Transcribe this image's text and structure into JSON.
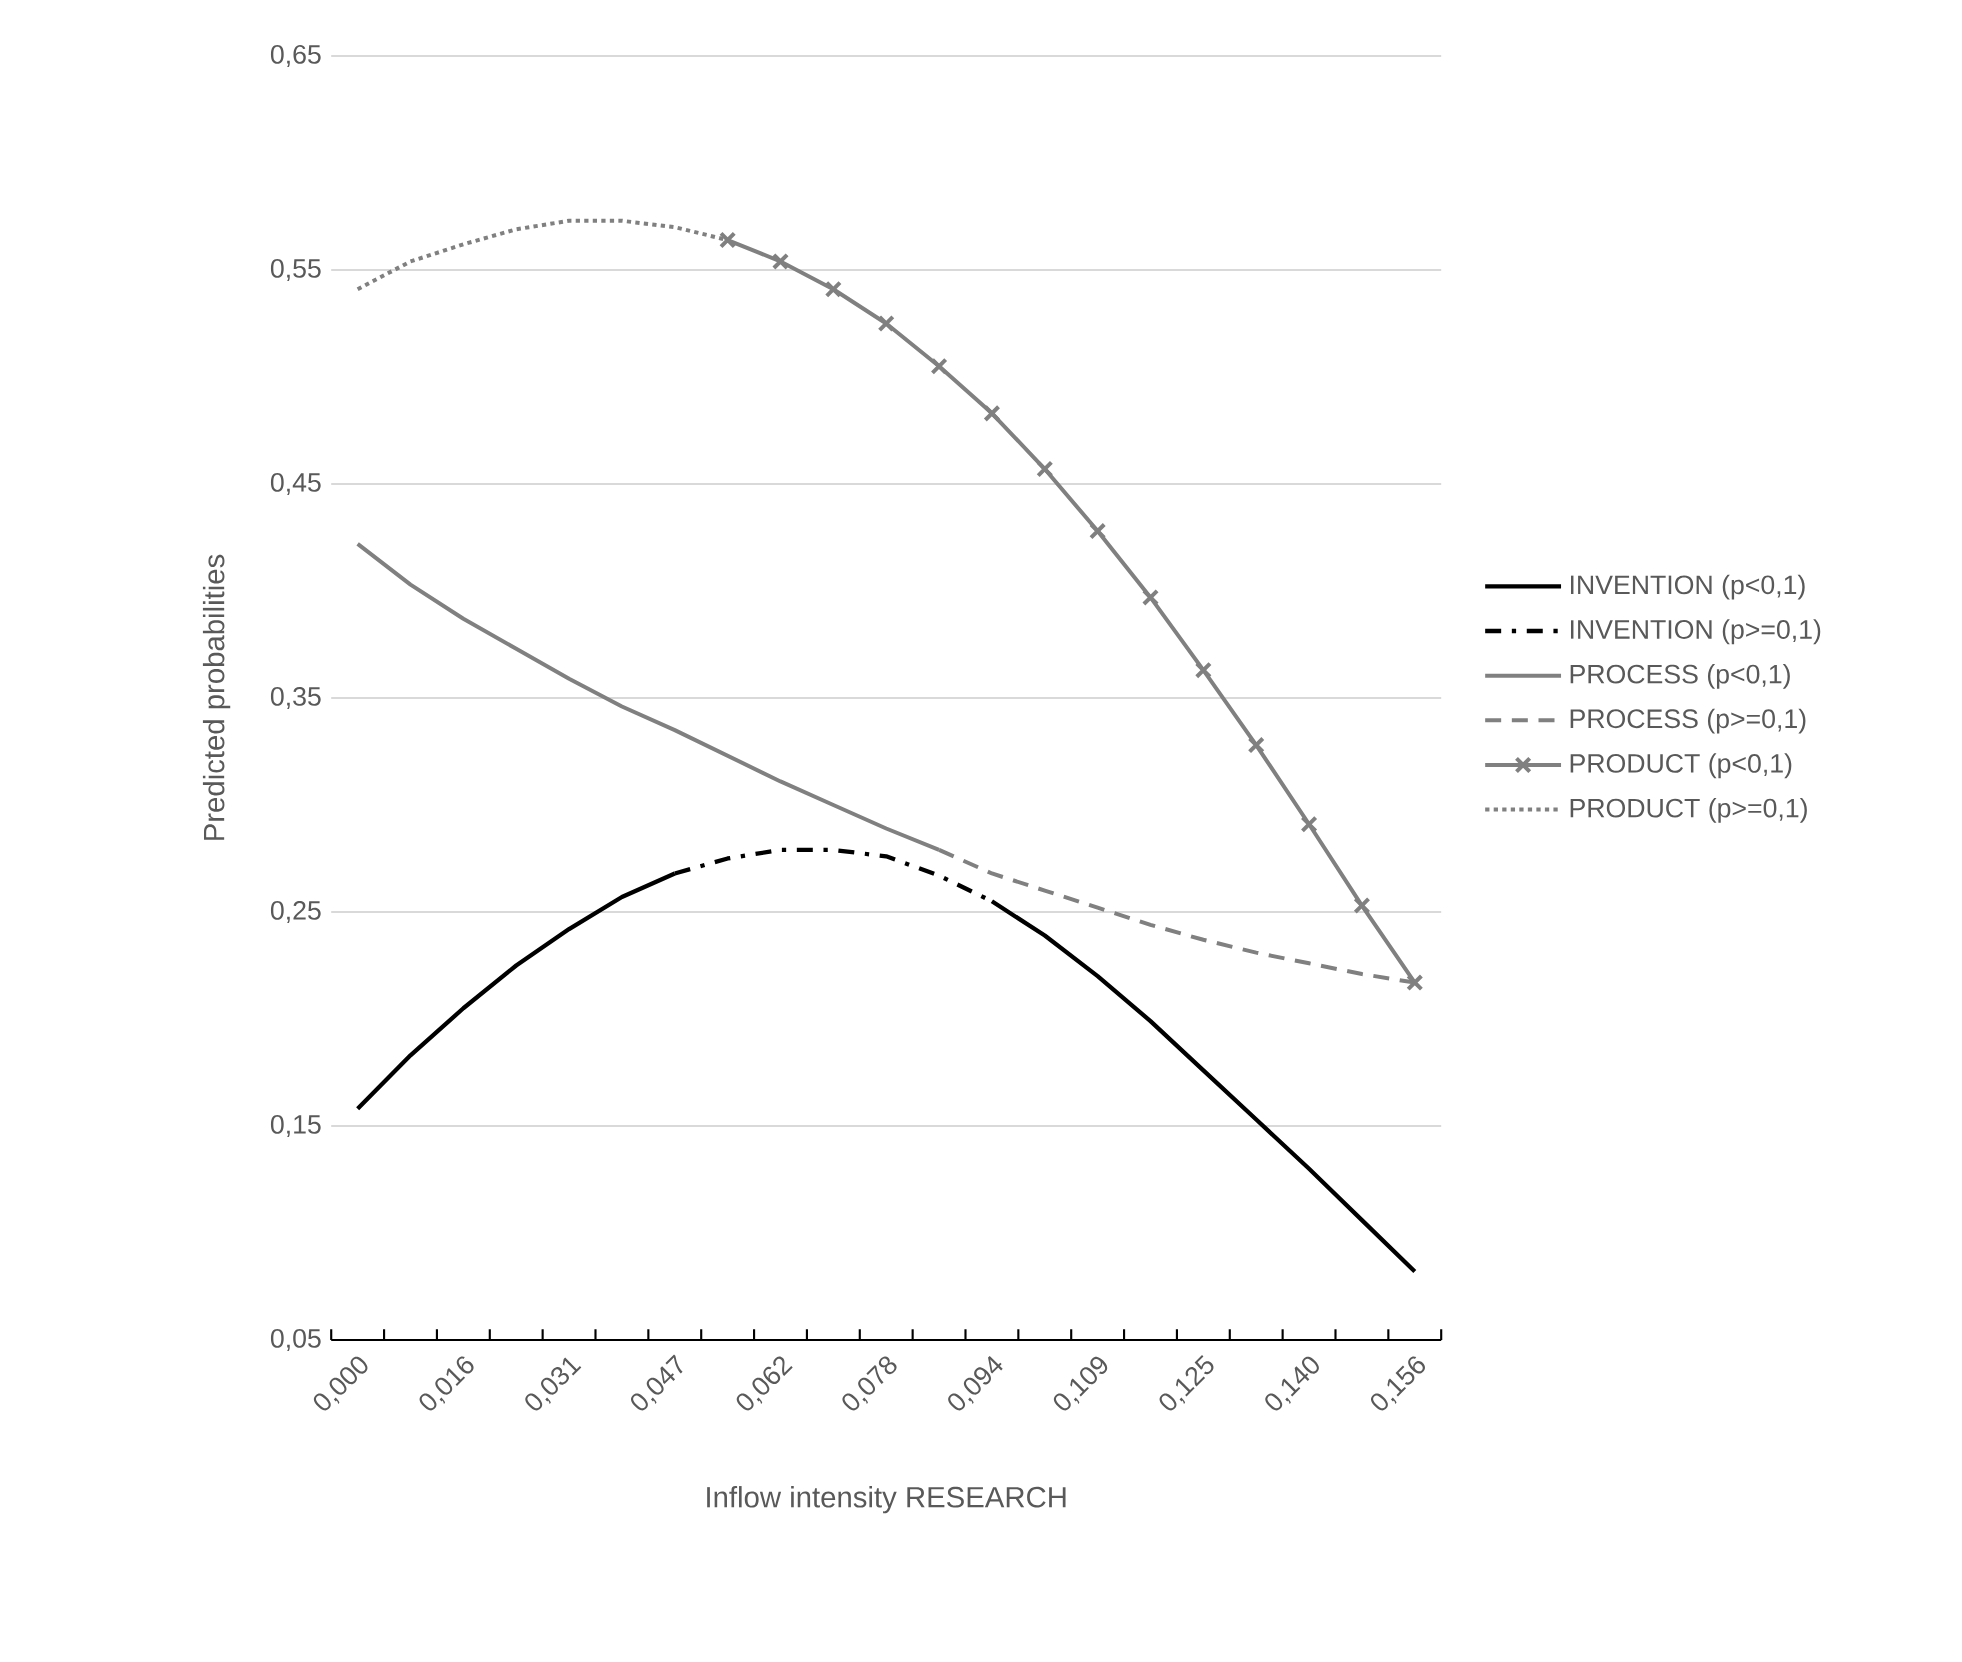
{
  "chart_data": {
    "type": "line",
    "xlabel": "Inflow intensity RESEARCH",
    "ylabel": "Predicted probabilities",
    "categories": [
      "0,000",
      null,
      "0,016",
      null,
      "0,031",
      null,
      "0,047",
      null,
      "0,062",
      null,
      "0,078",
      null,
      "0,094",
      null,
      "0,109",
      null,
      "0,125",
      null,
      "0,140",
      null,
      "0,156"
    ],
    "ylim": [
      0.05,
      0.65
    ],
    "yticks": [
      {
        "value": 0.05,
        "label": "0,05"
      },
      {
        "value": 0.15,
        "label": "0,15"
      },
      {
        "value": 0.25,
        "label": "0,25"
      },
      {
        "value": 0.35,
        "label": "0,35"
      },
      {
        "value": 0.45,
        "label": "0,45"
      },
      {
        "value": 0.55,
        "label": "0,55"
      },
      {
        "value": 0.65,
        "label": "0,65"
      }
    ],
    "grid": "y",
    "legend": "right",
    "series": [
      {
        "name": "INVENTION (p<0,1)",
        "color": "#000000",
        "line_style": "solid",
        "marker": "none",
        "values": [
          0.158,
          0.183,
          0.205,
          0.225,
          0.242,
          0.257,
          0.268,
          null,
          null,
          null,
          null,
          null,
          0.255,
          0.239,
          0.22,
          0.199,
          0.176,
          0.153,
          0.13,
          0.106,
          0.082
        ]
      },
      {
        "name": "INVENTION (p>=0,1)",
        "color": "#000000",
        "line_style": "dashdot",
        "marker": "none",
        "values": [
          null,
          null,
          null,
          null,
          null,
          null,
          0.268,
          0.275,
          0.279,
          0.279,
          0.276,
          0.267,
          0.255,
          null,
          null,
          null,
          null,
          null,
          null,
          null,
          null
        ]
      },
      {
        "name": "PROCESS (p<0,1)",
        "color": "#808080",
        "line_style": "solid",
        "marker": "none",
        "values": [
          0.422,
          0.403,
          0.387,
          0.373,
          0.359,
          0.346,
          0.335,
          0.323,
          0.311,
          0.3,
          0.289,
          0.279,
          null,
          null,
          null,
          null,
          null,
          null,
          null,
          null,
          null
        ]
      },
      {
        "name": "PROCESS (p>=0,1)",
        "color": "#808080",
        "line_style": "dashed",
        "marker": "none",
        "values": [
          null,
          null,
          null,
          null,
          null,
          null,
          null,
          null,
          null,
          null,
          null,
          0.279,
          0.268,
          0.26,
          0.252,
          0.244,
          0.237,
          0.231,
          0.226,
          0.221,
          0.217
        ]
      },
      {
        "name": "PRODUCT (p<0,1)",
        "color": "#808080",
        "line_style": "solid",
        "marker": "cross",
        "values": [
          null,
          null,
          null,
          null,
          null,
          null,
          null,
          0.564,
          0.554,
          0.541,
          0.525,
          0.505,
          0.483,
          0.457,
          0.428,
          0.397,
          0.363,
          0.328,
          0.291,
          0.253,
          0.217
        ]
      },
      {
        "name": "PRODUCT (p>=0,1)",
        "color": "#808080",
        "line_style": "dotted",
        "marker": "none",
        "values": [
          0.541,
          0.554,
          0.562,
          0.569,
          0.573,
          0.573,
          0.57,
          0.564,
          null,
          null,
          null,
          null,
          null,
          null,
          null,
          null,
          null,
          null,
          null,
          null,
          null
        ]
      }
    ]
  }
}
